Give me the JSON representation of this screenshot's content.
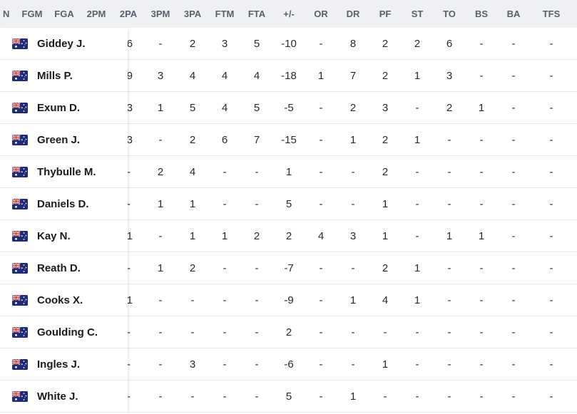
{
  "header": {
    "columns": [
      {
        "key": "n",
        "label": "N"
      },
      {
        "key": "fgm",
        "label": "FGM"
      },
      {
        "key": "fga",
        "label": "FGA"
      },
      {
        "key": "p2m",
        "label": "2PM"
      },
      {
        "key": "p2a",
        "label": "2PA"
      },
      {
        "key": "p3m",
        "label": "3PM"
      },
      {
        "key": "p3a",
        "label": "3PA"
      },
      {
        "key": "ftm",
        "label": "FTM"
      },
      {
        "key": "fta",
        "label": "FTA"
      },
      {
        "key": "pm",
        "label": "+/-"
      },
      {
        "key": "or",
        "label": "OR"
      },
      {
        "key": "dr",
        "label": "DR"
      },
      {
        "key": "pf",
        "label": "PF"
      },
      {
        "key": "st",
        "label": "ST"
      },
      {
        "key": "to",
        "label": "TO"
      },
      {
        "key": "bs",
        "label": "BS"
      },
      {
        "key": "ba",
        "label": "BA"
      },
      {
        "key": "tfs",
        "label": "TFS"
      }
    ]
  },
  "flag_icon": "australia-flag-icon",
  "players": [
    {
      "name": "Giddey J.",
      "p2a": "6",
      "p3m": "-",
      "p3a": "2",
      "ftm": "3",
      "fta": "5",
      "pm": "-10",
      "or": "-",
      "dr": "8",
      "pf": "2",
      "st": "2",
      "to": "6",
      "bs": "-",
      "ba": "-",
      "tfs": "-"
    },
    {
      "name": "Mills P.",
      "p2a": "9",
      "p3m": "3",
      "p3a": "4",
      "ftm": "4",
      "fta": "4",
      "pm": "-18",
      "or": "1",
      "dr": "7",
      "pf": "2",
      "st": "1",
      "to": "3",
      "bs": "-",
      "ba": "-",
      "tfs": "-"
    },
    {
      "name": "Exum D.",
      "p2a": "3",
      "p3m": "1",
      "p3a": "5",
      "ftm": "4",
      "fta": "5",
      "pm": "-5",
      "or": "-",
      "dr": "2",
      "pf": "3",
      "st": "-",
      "to": "2",
      "bs": "1",
      "ba": "-",
      "tfs": "-"
    },
    {
      "name": "Green J.",
      "p2a": "3",
      "p3m": "-",
      "p3a": "2",
      "ftm": "6",
      "fta": "7",
      "pm": "-15",
      "or": "-",
      "dr": "1",
      "pf": "2",
      "st": "1",
      "to": "-",
      "bs": "-",
      "ba": "-",
      "tfs": "-"
    },
    {
      "name": "Thybulle M.",
      "p2a": "-",
      "p3m": "2",
      "p3a": "4",
      "ftm": "-",
      "fta": "-",
      "pm": "1",
      "or": "-",
      "dr": "-",
      "pf": "2",
      "st": "-",
      "to": "-",
      "bs": "-",
      "ba": "-",
      "tfs": "-"
    },
    {
      "name": "Daniels D.",
      "p2a": "-",
      "p3m": "1",
      "p3a": "1",
      "ftm": "-",
      "fta": "-",
      "pm": "5",
      "or": "-",
      "dr": "-",
      "pf": "1",
      "st": "-",
      "to": "-",
      "bs": "-",
      "ba": "-",
      "tfs": "-"
    },
    {
      "name": "Kay N.",
      "p2a": "1",
      "p3m": "-",
      "p3a": "1",
      "ftm": "1",
      "fta": "2",
      "pm": "2",
      "or": "4",
      "dr": "3",
      "pf": "1",
      "st": "-",
      "to": "1",
      "bs": "1",
      "ba": "-",
      "tfs": "-"
    },
    {
      "name": "Reath D.",
      "p2a": "-",
      "p3m": "1",
      "p3a": "2",
      "ftm": "-",
      "fta": "-",
      "pm": "-7",
      "or": "-",
      "dr": "-",
      "pf": "2",
      "st": "1",
      "to": "-",
      "bs": "-",
      "ba": "-",
      "tfs": "-"
    },
    {
      "name": "Cooks X.",
      "p2a": "1",
      "p3m": "-",
      "p3a": "-",
      "ftm": "-",
      "fta": "-",
      "pm": "-9",
      "or": "-",
      "dr": "1",
      "pf": "4",
      "st": "1",
      "to": "-",
      "bs": "-",
      "ba": "-",
      "tfs": "-"
    },
    {
      "name": "Goulding C.",
      "p2a": "-",
      "p3m": "-",
      "p3a": "-",
      "ftm": "-",
      "fta": "-",
      "pm": "2",
      "or": "-",
      "dr": "-",
      "pf": "-",
      "st": "-",
      "to": "-",
      "bs": "-",
      "ba": "-",
      "tfs": "-"
    },
    {
      "name": "Ingles J.",
      "p2a": "-",
      "p3m": "-",
      "p3a": "3",
      "ftm": "-",
      "fta": "-",
      "pm": "-6",
      "or": "-",
      "dr": "-",
      "pf": "1",
      "st": "-",
      "to": "-",
      "bs": "-",
      "ba": "-",
      "tfs": "-"
    },
    {
      "name": "White J.",
      "p2a": "-",
      "p3m": "-",
      "p3a": "-",
      "ftm": "-",
      "fta": "-",
      "pm": "5",
      "or": "-",
      "dr": "1",
      "pf": "-",
      "st": "-",
      "to": "-",
      "bs": "-",
      "ba": "-",
      "tfs": "-"
    }
  ]
}
